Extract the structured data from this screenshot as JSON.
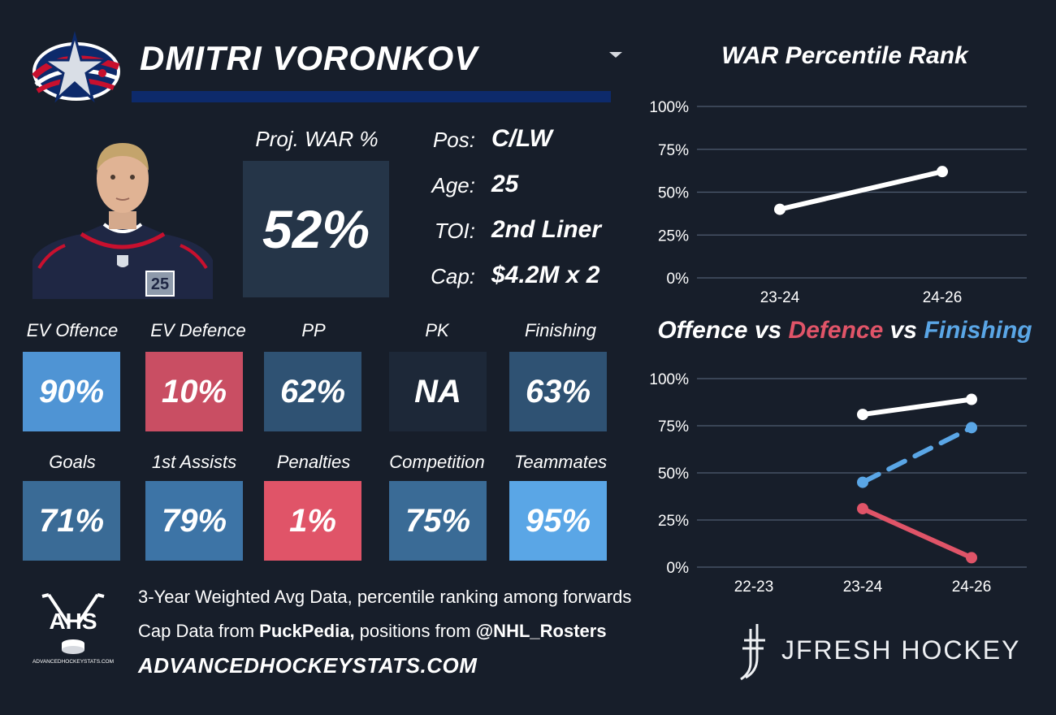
{
  "player": {
    "name": "DMITRI VORONKOV",
    "proj_war_label": "Proj. WAR %",
    "proj_war_value": "52%",
    "info": [
      {
        "label": "Pos:",
        "value": "C/LW"
      },
      {
        "label": "Age:",
        "value": "25"
      },
      {
        "label": "TOI:",
        "value": "2nd Liner"
      },
      {
        "label": "Cap:",
        "value": "$4.2M x 2"
      }
    ],
    "jersey_number": "25"
  },
  "tiles_row1": [
    {
      "label": "EV Offence",
      "value": "90%",
      "color": "#4f94d4"
    },
    {
      "label": "EV Defence",
      "value": "10%",
      "color": "#c94e63"
    },
    {
      "label": "PP",
      "value": "62%",
      "color": "#2f5273"
    },
    {
      "label": "PK",
      "value": "NA",
      "color": "#1d2838"
    },
    {
      "label": "Finishing",
      "value": "63%",
      "color": "#2f5273"
    }
  ],
  "tiles_row2": [
    {
      "label": "Goals",
      "value": "71%",
      "color": "#3a6b96"
    },
    {
      "label": "1st Assists",
      "value": "79%",
      "color": "#3d74a6"
    },
    {
      "label": "Penalties",
      "value": "1%",
      "color": "#e05468"
    },
    {
      "label": "Competition",
      "value": "75%",
      "color": "#3a6b96"
    },
    {
      "label": "Teammates",
      "value": "95%",
      "color": "#5aa6e6"
    }
  ],
  "footer": {
    "line1": "3-Year Weighted Avg Data, percentile ranking among forwards",
    "line2_pre": "Cap Data from ",
    "line2_b1": "PuckPedia,",
    "line2_mid": " positions from ",
    "line2_b2": "@NHL_Rosters",
    "site": "ADVANCEDHOCKEYSTATS.COM",
    "ahs_logo_text": "AHS",
    "ahs_logo_small": "ADVANCEDHOCKEYSTATS.COM",
    "brand": "JFRESH HOCKEY"
  },
  "chart_data": [
    {
      "type": "line",
      "title": "WAR Percentile Rank",
      "categories": [
        "23-24",
        "24-26"
      ],
      "series": [
        {
          "values": [
            40,
            62
          ],
          "color": "#ffffff",
          "dashed": false
        }
      ],
      "ylim": [
        0,
        100
      ],
      "yticks": [
        "0%",
        "25%",
        "50%",
        "75%",
        "100%"
      ],
      "grid": true
    },
    {
      "type": "line",
      "title": "Offence vs Defence vs Finishing",
      "title_parts": [
        {
          "text": "Offence",
          "color": "#ffffff"
        },
        {
          "text": " vs ",
          "color": "#ffffff"
        },
        {
          "text": "Defence",
          "color": "#e05468"
        },
        {
          "text": " vs ",
          "color": "#ffffff"
        },
        {
          "text": "Finishing",
          "color": "#5aa6e6"
        }
      ],
      "categories": [
        "22-23",
        "23-24",
        "24-26"
      ],
      "series": [
        {
          "name": "Offence",
          "values": [
            null,
            81,
            89
          ],
          "color": "#ffffff",
          "dashed": false
        },
        {
          "name": "Defence",
          "values": [
            null,
            31,
            5
          ],
          "color": "#e05468",
          "dashed": false
        },
        {
          "name": "Finishing",
          "values": [
            null,
            45,
            74
          ],
          "color": "#5aa6e6",
          "dashed": true
        }
      ],
      "ylim": [
        0,
        100
      ],
      "yticks": [
        "0%",
        "25%",
        "50%",
        "75%",
        "100%"
      ],
      "grid": true
    }
  ]
}
